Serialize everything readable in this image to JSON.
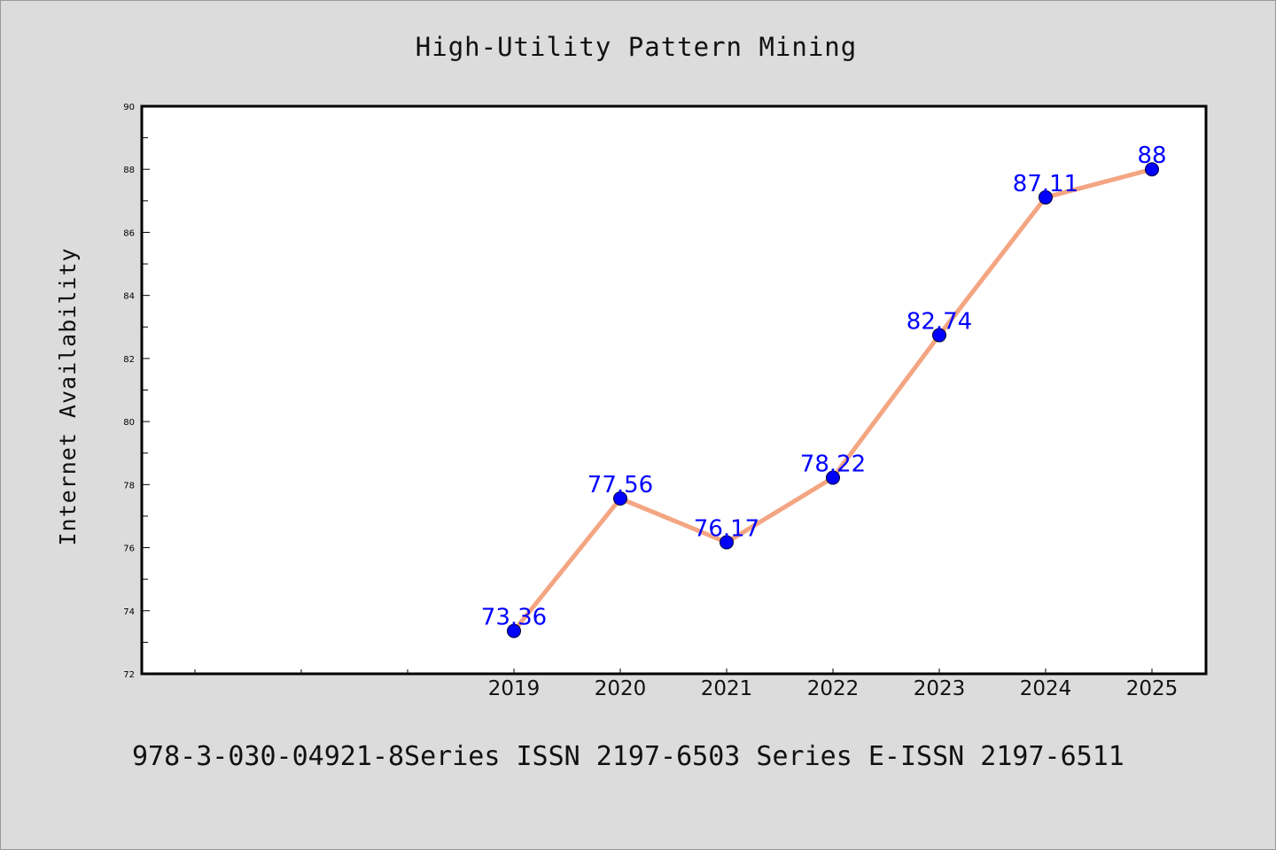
{
  "chart_data": {
    "type": "line",
    "title": "High-Utility Pattern Mining",
    "ylabel": "Internet Availability",
    "xlabel": "",
    "x": [
      "2019",
      "2020",
      "2021",
      "2022",
      "2023",
      "2024",
      "2025"
    ],
    "series": [
      {
        "values": [
          73.36,
          77.56,
          76.17,
          78.22,
          82.74,
          87.11,
          88
        ]
      }
    ],
    "data_labels": [
      "73.36",
      "77.56",
      "76.17",
      "78.22",
      "82.74",
      "87.11",
      "88"
    ],
    "ylim": [
      72,
      90
    ],
    "yticks": [
      "72",
      "74",
      "76",
      "78",
      "80",
      "82",
      "84",
      "86",
      "88",
      "90"
    ],
    "x_extra_ticks_before": 3,
    "grid": false,
    "legend": "none",
    "colors": {
      "background": "#dcdcdc",
      "plot_background": "#ffffff",
      "line": "#f4a582",
      "marker": "#0000ff",
      "data_label": "#0000ff"
    }
  },
  "footer": {
    "text": "978-3-030-04921-8Series ISSN 2197-6503 Series E-ISSN 2197-6511"
  }
}
